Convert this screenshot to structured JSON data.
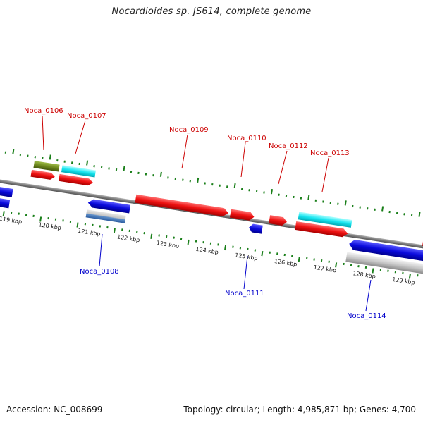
{
  "title": "Nocardioides sp. JS614, complete genome",
  "footer": {
    "accession": "Accession: NC_008699",
    "topology": "Topology: circular; Length: 4,985,871 bp; Genes: 4,700"
  },
  "ruler_ticks": [
    "119 kbp",
    "120 kbp",
    "121 kbp",
    "122 kbp",
    "123 kbp",
    "124 kbp",
    "125 kbp",
    "126 kbp",
    "127 kbp",
    "128 kbp",
    "129 kbp"
  ],
  "gene_labels_top": [
    "Noca_0106",
    "Noca_0107",
    "Noca_0109",
    "Noca_0110",
    "Noca_0112",
    "Noca_0113"
  ],
  "gene_labels_bottom": [
    "Noca_0108",
    "Noca_0111",
    "Noca_0114"
  ],
  "colors": {
    "forward_label": "#cc0000",
    "reverse_label": "#0000cc",
    "red": "#ee1111",
    "blue": "#0a0adc",
    "cyan": "#18e6f0",
    "olive": "#6f8a1e",
    "grey": "#c8c8c8",
    "dots": "#1a7f1a"
  }
}
